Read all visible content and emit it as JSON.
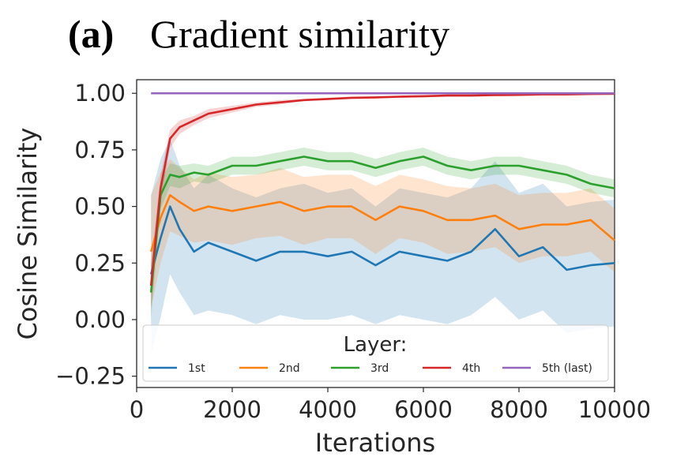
{
  "chart_data": {
    "type": "line",
    "panel_label": "(a)",
    "title": "Gradient similarity",
    "xlabel": "Iterations",
    "ylabel": "Cosine Similarity",
    "xlim": [
      0,
      10000
    ],
    "ylim": [
      -0.3,
      1.06
    ],
    "xticks": [
      0,
      2000,
      4000,
      6000,
      8000,
      10000
    ],
    "xtick_labels": [
      "0",
      "2000",
      "4000",
      "6000",
      "8000",
      "10000"
    ],
    "yticks": [
      -0.25,
      0,
      0.25,
      0.5,
      0.75,
      1.0
    ],
    "ytick_labels": [
      "−0.25",
      "0.00",
      "0.25",
      "0.50",
      "0.75",
      "1.00"
    ],
    "grid": false,
    "legend": {
      "title": "Layer:",
      "placement": "bottom",
      "columns": 5
    },
    "x": [
      300,
      500,
      700,
      900,
      1200,
      1500,
      2000,
      2500,
      3000,
      3500,
      4000,
      4500,
      5000,
      5500,
      6000,
      6500,
      7000,
      7500,
      8000,
      8500,
      9000,
      9500,
      10000
    ],
    "series": [
      {
        "name": "1st",
        "color": "#1f77b4",
        "values": [
          0.2,
          0.36,
          0.5,
          0.4,
          0.3,
          0.34,
          0.3,
          0.26,
          0.3,
          0.3,
          0.28,
          0.3,
          0.24,
          0.3,
          0.28,
          0.26,
          0.3,
          0.4,
          0.28,
          0.32,
          0.22,
          0.24,
          0.25
        ],
        "band": [
          0.35,
          0.35,
          0.3,
          0.28,
          0.28,
          0.3,
          0.28,
          0.28,
          0.28,
          0.3,
          0.28,
          0.28,
          0.26,
          0.28,
          0.28,
          0.28,
          0.28,
          0.3,
          0.28,
          0.28,
          0.28,
          0.28,
          0.28
        ]
      },
      {
        "name": "2nd",
        "color": "#ff7f0e",
        "values": [
          0.3,
          0.45,
          0.55,
          0.52,
          0.48,
          0.5,
          0.48,
          0.5,
          0.52,
          0.48,
          0.5,
          0.5,
          0.44,
          0.5,
          0.48,
          0.44,
          0.44,
          0.46,
          0.4,
          0.42,
          0.42,
          0.44,
          0.35
        ],
        "band": [
          0.25,
          0.2,
          0.16,
          0.15,
          0.14,
          0.15,
          0.15,
          0.14,
          0.15,
          0.15,
          0.14,
          0.14,
          0.15,
          0.14,
          0.14,
          0.15,
          0.14,
          0.14,
          0.15,
          0.14,
          0.14,
          0.14,
          0.14
        ]
      },
      {
        "name": "3rd",
        "color": "#2ca02c",
        "values": [
          0.12,
          0.55,
          0.64,
          0.63,
          0.65,
          0.64,
          0.68,
          0.68,
          0.7,
          0.72,
          0.7,
          0.7,
          0.67,
          0.7,
          0.72,
          0.68,
          0.66,
          0.68,
          0.68,
          0.66,
          0.64,
          0.6,
          0.58
        ],
        "band": [
          0.12,
          0.06,
          0.05,
          0.05,
          0.04,
          0.04,
          0.04,
          0.04,
          0.04,
          0.04,
          0.04,
          0.04,
          0.04,
          0.04,
          0.04,
          0.04,
          0.04,
          0.04,
          0.04,
          0.04,
          0.04,
          0.04,
          0.04
        ]
      },
      {
        "name": "4th",
        "color": "#d62728",
        "values": [
          0.15,
          0.58,
          0.8,
          0.85,
          0.88,
          0.91,
          0.93,
          0.95,
          0.96,
          0.97,
          0.975,
          0.98,
          0.982,
          0.985,
          0.987,
          0.99,
          0.99,
          0.992,
          0.993,
          0.995,
          0.995,
          0.997,
          0.998
        ],
        "band": [
          0.1,
          0.06,
          0.04,
          0.03,
          0.02,
          0.02,
          0.015,
          0.01,
          0.01,
          0.005,
          0.005,
          0.005,
          0.005,
          0.005,
          0.005,
          0.005,
          0.005,
          0.005,
          0.005,
          0.005,
          0.005,
          0.005,
          0.005
        ]
      },
      {
        "name": "5th (last)",
        "color": "#9467bd",
        "values": [
          1.0,
          1.0,
          1.0,
          1.0,
          1.0,
          1.0,
          1.0,
          1.0,
          1.0,
          1.0,
          1.0,
          1.0,
          1.0,
          1.0,
          1.0,
          1.0,
          1.0,
          1.0,
          1.0,
          1.0,
          1.0,
          1.0,
          1.0
        ],
        "band": [
          0,
          0,
          0,
          0,
          0,
          0,
          0,
          0,
          0,
          0,
          0,
          0,
          0,
          0,
          0,
          0,
          0,
          0,
          0,
          0,
          0,
          0,
          0
        ]
      }
    ]
  }
}
